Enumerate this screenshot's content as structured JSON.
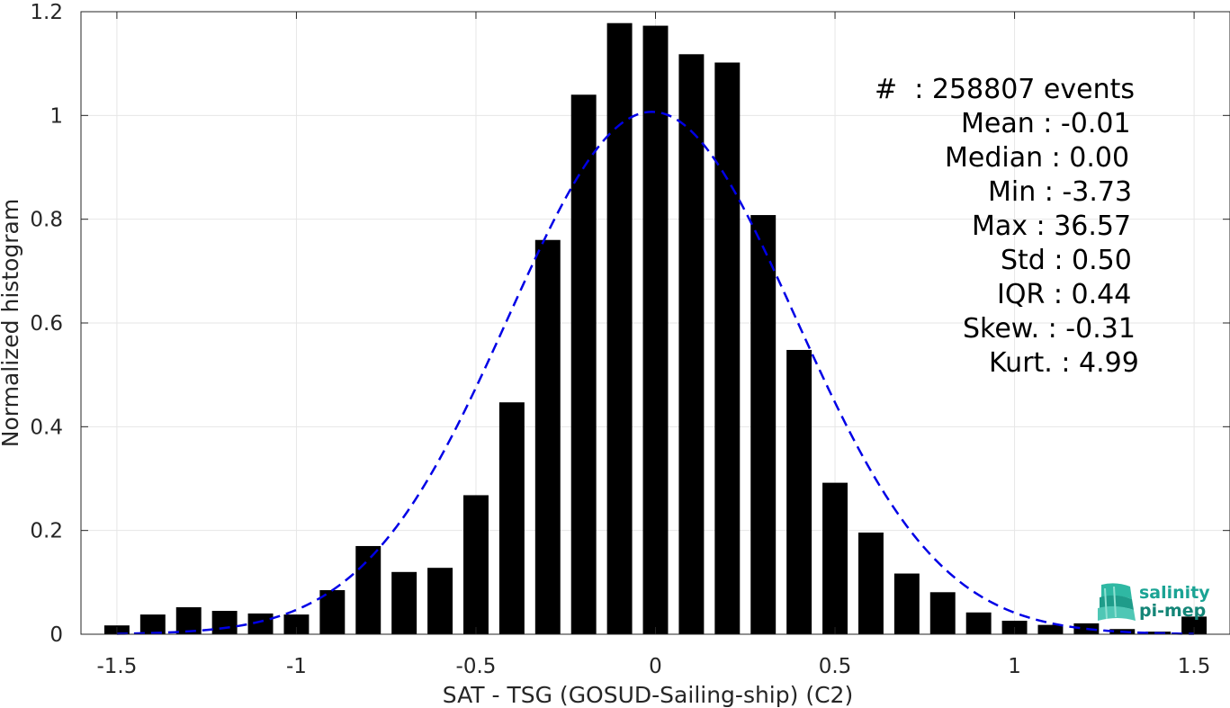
{
  "chart_data": {
    "type": "bar",
    "xlabel": "SAT - TSG (GOSUD-Sailing-ship) (C2)",
    "ylabel": "Normalized histogram",
    "xlim": [
      -1.6,
      1.6
    ],
    "ylim": [
      0,
      1.2
    ],
    "xticks": [
      -1.5,
      -1,
      -0.5,
      0,
      0.5,
      1,
      1.5
    ],
    "xtick_labels": [
      "-1.5",
      "-1",
      "-0.5",
      "0",
      "0.5",
      "1",
      "1.5"
    ],
    "yticks": [
      0,
      0.2,
      0.4,
      0.6,
      0.8,
      1,
      1.2
    ],
    "ytick_labels": [
      "0",
      "0.2",
      "0.4",
      "0.6",
      "0.8",
      "1",
      "1.2"
    ],
    "grid": true,
    "bar_color": "#000000",
    "bar_width": 0.07,
    "bins": [
      -1.5,
      -1.4,
      -1.3,
      -1.2,
      -1.1,
      -1.0,
      -0.9,
      -0.8,
      -0.7,
      -0.6,
      -0.5,
      -0.4,
      -0.3,
      -0.2,
      -0.1,
      0.0,
      0.1,
      0.2,
      0.3,
      0.4,
      0.5,
      0.6,
      0.7,
      0.8,
      0.9,
      1.0,
      1.1,
      1.2,
      1.3,
      1.4,
      1.5
    ],
    "values": [
      0.017,
      0.038,
      0.052,
      0.045,
      0.04,
      0.038,
      0.085,
      0.17,
      0.12,
      0.128,
      0.268,
      0.447,
      0.76,
      1.04,
      1.178,
      1.173,
      1.118,
      1.102,
      0.808,
      0.548,
      0.292,
      0.196,
      0.117,
      0.081,
      0.042,
      0.026,
      0.018,
      0.021,
      0.01,
      0.005,
      0.034
    ],
    "fit_curve": {
      "type": "gaussian",
      "mean": -0.01,
      "std": 0.4,
      "peak": 1.007,
      "color": "#0000e6",
      "style": "dashed"
    },
    "stats": [
      "#  : 258807 events",
      "Mean : -0.01",
      "Median : 0.00",
      "Min : -3.73",
      "Max : 36.57",
      "Std : 0.50",
      "IQR : 0.44",
      "Skew. : -0.31",
      "Kurt. : 4.99"
    ]
  },
  "logo": {
    "line1": "salinity",
    "line2": "pi-mep",
    "color": "#1aa394"
  }
}
